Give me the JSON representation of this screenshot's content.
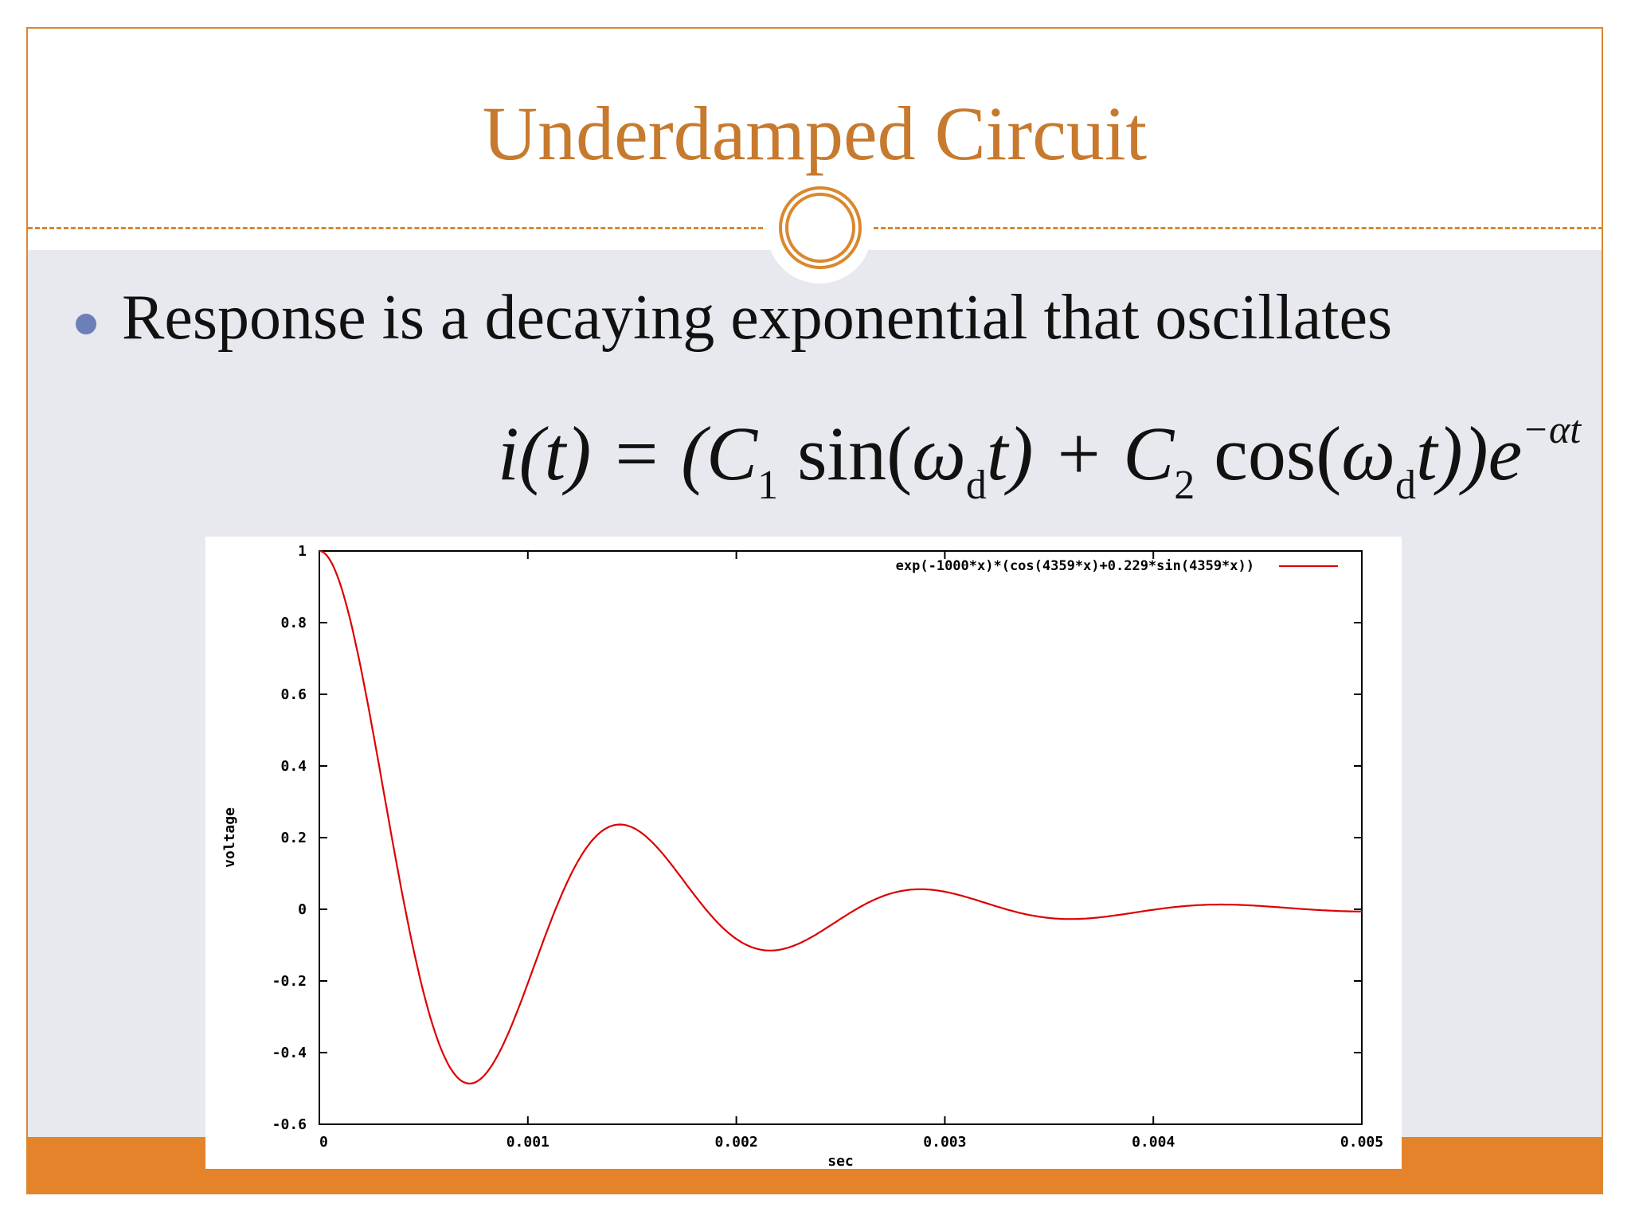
{
  "slide": {
    "title": "Underdamped Circuit",
    "bullet": "Response is a decaying exponential that oscillates",
    "formula": {
      "lhs": "i(t) = (C",
      "sub1": "1",
      "sin": " sin(",
      "omega": "ω",
      "sub_d": "d",
      "t_part": "t) + C",
      "sub2": "2",
      "cos": " cos(",
      "omega2": "ω",
      "sub_d2": "d",
      "t_end": "t))e",
      "exp": "−αt"
    },
    "colors": {
      "title": "#c77a2e",
      "accent": "#d9882e",
      "footer": "#e4832a",
      "bullet": "#6d7fb8",
      "background": "#e7e9ee"
    }
  },
  "chart_data": {
    "type": "line",
    "xlabel": "sec",
    "ylabel": "voltage",
    "xlim": [
      0,
      0.005
    ],
    "ylim": [
      -0.6,
      1
    ],
    "xticks": [
      "0",
      "0.001",
      "0.002",
      "0.003",
      "0.004",
      "0.005"
    ],
    "xtick_values": [
      0,
      0.001,
      0.002,
      0.003,
      0.004,
      0.005
    ],
    "yticks": [
      "1",
      "0.8",
      "0.6",
      "0.4",
      "0.2",
      "0",
      "-0.2",
      "-0.4",
      "-0.6"
    ],
    "ytick_values": [
      1,
      0.8,
      0.6,
      0.4,
      0.2,
      0,
      -0.2,
      -0.4,
      -0.6
    ],
    "legend_position": "top-right",
    "grid": false,
    "series": [
      {
        "name": "exp(-1000*x)*(cos(4359*x)+0.229*sin(4359*x))",
        "color": "#dd0000",
        "function": {
          "decay": 1000,
          "omega": 4359,
          "sin_coeff": 0.229
        },
        "x": [
          0,
          0.0002,
          0.0004,
          0.0006,
          0.00072,
          0.0008,
          0.001,
          0.0012,
          0.00144,
          0.0016,
          0.0018,
          0.00216,
          0.0024,
          0.0026,
          0.00288,
          0.0032,
          0.0036,
          0.004,
          0.0043,
          0.0046,
          0.005
        ],
        "values": [
          1.0,
          0.68,
          0.02,
          -0.42,
          -0.48,
          -0.46,
          -0.2,
          0.1,
          0.235,
          0.19,
          0.02,
          -0.115,
          -0.07,
          0.02,
          0.055,
          0.02,
          -0.025,
          0.0,
          0.015,
          0.005,
          -0.005
        ]
      }
    ]
  }
}
